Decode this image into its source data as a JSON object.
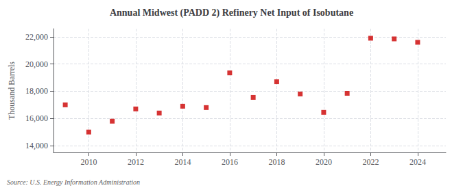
{
  "chart_data": {
    "type": "scatter",
    "title": "Annual Midwest (PADD 2) Refinery Net Input of Isobutane",
    "ylabel": "Thousand Barrels",
    "annotation": "Source: U.S. Energy Information Administration",
    "x": [
      2009,
      2010,
      2011,
      2012,
      2013,
      2014,
      2015,
      2016,
      2017,
      2018,
      2019,
      2020,
      2021,
      2022,
      2023,
      2024
    ],
    "values": [
      17000,
      15000,
      15800,
      16700,
      16400,
      16900,
      16800,
      19350,
      17550,
      18700,
      17800,
      16450,
      17850,
      21900,
      21850,
      21600
    ],
    "color": "#cc0000",
    "marker": "square",
    "xlim": [
      2008.5,
      2025.2
    ],
    "xticks": [
      2010,
      2012,
      2014,
      2016,
      2018,
      2020,
      2022,
      2024
    ],
    "ylim": [
      13500,
      22600
    ],
    "yticks": [
      {
        "value": 14000,
        "label": "14,000"
      },
      {
        "value": 16000,
        "label": "16,000"
      },
      {
        "value": 18000,
        "label": "18,000"
      },
      {
        "value": 20000,
        "label": "20,000"
      },
      {
        "value": 22000,
        "label": "22,000"
      }
    ],
    "grid": true
  }
}
